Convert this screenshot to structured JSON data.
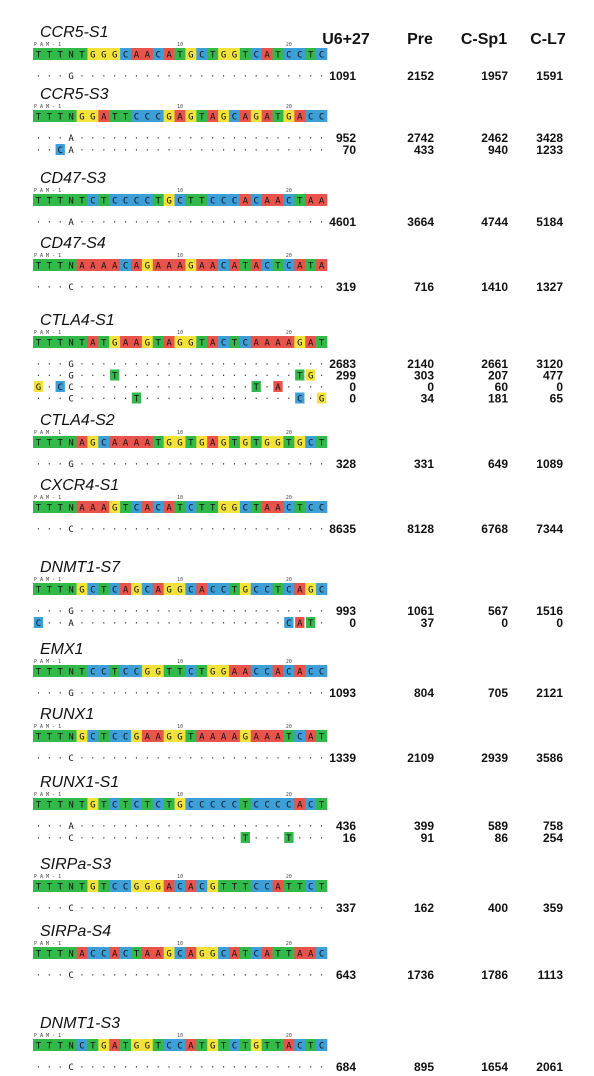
{
  "columns": [
    "U6+27",
    "Pre",
    "C-Sp1",
    "C-L7"
  ],
  "ruler": {
    "pam": "P A M - 1",
    "tick10": "10",
    "tick20": "20"
  },
  "colors": {
    "A": "#e8534b",
    "C": "#3c9fd7",
    "G": "#f2e23a",
    "T": "#31b94a",
    "N": "#31b94a"
  },
  "sites": [
    {
      "name": "CCR5-S1",
      "seq": "TTTNTGGGCAACATGCTGGTCATCCTC",
      "variants": [
        {
          "changes": [
            [
              4,
              "G"
            ]
          ],
          "counts": [
            "1091",
            "2152",
            "1957",
            "1591"
          ]
        }
      ]
    },
    {
      "name": "CCR5-S3",
      "seq": "TTTNGGATTCCCGAGTAGCAGATGACC",
      "variants": [
        {
          "changes": [
            [
              4,
              "A"
            ]
          ],
          "counts": [
            "952",
            "2742",
            "2462",
            "3428"
          ]
        },
        {
          "changes": [
            [
              3,
              "C"
            ],
            [
              4,
              "A"
            ]
          ],
          "counts": [
            "70",
            "433",
            "940",
            "1233"
          ]
        }
      ]
    },
    {
      "name": "CD47-S3",
      "seq": "TTTNTCTCCCCTGCTTCCCACAACTAA",
      "variants": [
        {
          "changes": [
            [
              4,
              "A"
            ]
          ],
          "counts": [
            "4601",
            "3664",
            "4744",
            "5184"
          ]
        }
      ]
    },
    {
      "name": "CD47-S4",
      "seq": "TTTNAAAACAGAAAGAACATACTCATA",
      "variants": [
        {
          "changes": [
            [
              4,
              "C"
            ]
          ],
          "counts": [
            "319",
            "716",
            "1410",
            "1327"
          ]
        }
      ]
    },
    {
      "name": "CTLA4-S1",
      "seq": "TTTNTATGAAGTAGGTACTCAAAAGAT",
      "variants": [
        {
          "changes": [
            [
              4,
              "G"
            ]
          ],
          "counts": [
            "2683",
            "2140",
            "2661",
            "3120"
          ]
        },
        {
          "changes": [
            [
              4,
              "G"
            ],
            [
              8,
              "T"
            ],
            [
              25,
              "T"
            ],
            [
              26,
              "G"
            ]
          ],
          "counts": [
            "299",
            "303",
            "207",
            "477"
          ]
        },
        {
          "changes": [
            [
              1,
              "G"
            ],
            [
              3,
              "C"
            ],
            [
              4,
              "C"
            ],
            [
              21,
              "T"
            ],
            [
              23,
              "A"
            ]
          ],
          "counts": [
            "0",
            "0",
            "60",
            "0"
          ]
        },
        {
          "changes": [
            [
              4,
              "C"
            ],
            [
              10,
              "T"
            ],
            [
              25,
              "C"
            ],
            [
              27,
              "G"
            ],
            [
              28,
              "A"
            ]
          ],
          "counts": [
            "0",
            "34",
            "181",
            "65"
          ]
        }
      ]
    },
    {
      "name": "CTLA4-S2",
      "seq": "TTTNAGCAAAATGGTGAGTGTGGTGCT",
      "variants": [
        {
          "changes": [
            [
              4,
              "G"
            ]
          ],
          "counts": [
            "328",
            "331",
            "649",
            "1089"
          ]
        }
      ]
    },
    {
      "name": "CXCR4-S1",
      "seq": "TTTNAAAGTCACATCTTGGCTAACTCC",
      "variants": [
        {
          "changes": [
            [
              4,
              "C"
            ]
          ],
          "counts": [
            "8635",
            "8128",
            "6768",
            "7344"
          ]
        }
      ]
    },
    {
      "name": "DNMT1-S7",
      "seq": "TTTNGCTCAGCAGGCACCTGCCTCAGC",
      "variants": [
        {
          "changes": [
            [
              4,
              "G"
            ]
          ],
          "counts": [
            "993",
            "1061",
            "567",
            "1516"
          ]
        },
        {
          "changes": [
            [
              1,
              "C"
            ],
            [
              4,
              "A"
            ],
            [
              24,
              "C"
            ],
            [
              25,
              "A"
            ],
            [
              26,
              "T"
            ],
            [
              28,
              "G"
            ]
          ],
          "counts": [
            "0",
            "37",
            "0",
            "0"
          ]
        }
      ]
    },
    {
      "name": "EMX1",
      "seq": "TTTNTCCTCCGGTTCTGGAACCACACC",
      "variants": [
        {
          "changes": [
            [
              4,
              "G"
            ]
          ],
          "counts": [
            "1093",
            "804",
            "705",
            "2121"
          ]
        }
      ]
    },
    {
      "name": "RUNX1",
      "seq": "TTTNGCTCCGAAGGTAAAAGAAATCAT",
      "variants": [
        {
          "changes": [
            [
              4,
              "C"
            ]
          ],
          "counts": [
            "1339",
            "2109",
            "2939",
            "3586"
          ]
        }
      ]
    },
    {
      "name": "RUNX1-S1",
      "seq": "TTTNTGTCTCTCTGCCCCCTCCCCACT",
      "variants": [
        {
          "changes": [
            [
              4,
              "A"
            ]
          ],
          "counts": [
            "436",
            "399",
            "589",
            "758"
          ]
        },
        {
          "changes": [
            [
              4,
              "C"
            ],
            [
              20,
              "T"
            ],
            [
              24,
              "T"
            ]
          ],
          "counts": [
            "16",
            "91",
            "86",
            "254"
          ]
        }
      ]
    },
    {
      "name": "SIRPa-S3",
      "seq": "TTTNTGTCCGGGACACGTTTCCATTCT",
      "variants": [
        {
          "changes": [
            [
              4,
              "C"
            ]
          ],
          "counts": [
            "337",
            "162",
            "400",
            "359"
          ]
        }
      ]
    },
    {
      "name": "SIRPa-S4",
      "seq": "TTTNACCACTAAGCAGGCATCATTAAC",
      "variants": [
        {
          "changes": [
            [
              4,
              "C"
            ]
          ],
          "counts": [
            "643",
            "1736",
            "1786",
            "1113"
          ]
        }
      ]
    },
    {
      "name": "DNMT1-S3",
      "seq": "TTTNCTGATGGTCCATGTCTGTTACTC",
      "variants": [
        {
          "changes": [
            [
              4,
              "C"
            ]
          ],
          "counts": [
            "684",
            "895",
            "1654",
            "2061"
          ]
        }
      ]
    }
  ]
}
